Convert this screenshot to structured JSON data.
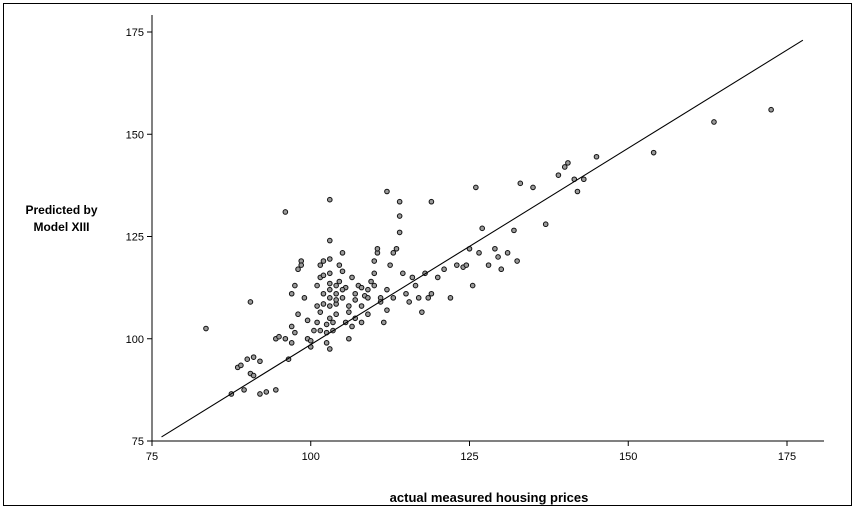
{
  "chart_data": {
    "type": "scatter",
    "title": "",
    "xlabel": "actual measured housing prices",
    "ylabel": [
      "Predicted by",
      "Model XIII"
    ],
    "xlim": [
      75,
      180
    ],
    "ylim": [
      75,
      180
    ],
    "xticks": [
      75,
      100,
      125,
      150,
      175
    ],
    "yticks": [
      75,
      100,
      125,
      150,
      175
    ],
    "grid": false,
    "fit_line": {
      "x": [
        76.5,
        177.5
      ],
      "y": [
        76.0,
        173.0
      ]
    },
    "points": [
      [
        83.5,
        102.5
      ],
      [
        87.5,
        86.5
      ],
      [
        88.5,
        93
      ],
      [
        89,
        93.5
      ],
      [
        89.5,
        87.5
      ],
      [
        90,
        95
      ],
      [
        91,
        95.5
      ],
      [
        90.5,
        91.5
      ],
      [
        91,
        91
      ],
      [
        92,
        94.5
      ],
      [
        92,
        86.5
      ],
      [
        93,
        87
      ],
      [
        94.5,
        87.5
      ],
      [
        90.5,
        109
      ],
      [
        94.5,
        100
      ],
      [
        95,
        100.5
      ],
      [
        96,
        100
      ],
      [
        96,
        131
      ],
      [
        96.5,
        95
      ],
      [
        97,
        99
      ],
      [
        97,
        103
      ],
      [
        97.5,
        101.5
      ],
      [
        98,
        106
      ],
      [
        97.5,
        113
      ],
      [
        97,
        111
      ],
      [
        98,
        117
      ],
      [
        98.5,
        119
      ],
      [
        98.5,
        118
      ],
      [
        99,
        110
      ],
      [
        99.5,
        104.5
      ],
      [
        99.5,
        100
      ],
      [
        100,
        98
      ],
      [
        100,
        99.5
      ],
      [
        100.5,
        102
      ],
      [
        101,
        104
      ],
      [
        101,
        108
      ],
      [
        101.5,
        102
      ],
      [
        101.5,
        106.5
      ],
      [
        101,
        113
      ],
      [
        101.5,
        115
      ],
      [
        101.5,
        118
      ],
      [
        102,
        119
      ],
      [
        102,
        115.5
      ],
      [
        102,
        111
      ],
      [
        102.5,
        103.5
      ],
      [
        102.5,
        101.5
      ],
      [
        102.5,
        99
      ],
      [
        103,
        97.5
      ],
      [
        103,
        105
      ],
      [
        103,
        108
      ],
      [
        103,
        110
      ],
      [
        103,
        112
      ],
      [
        103,
        113.5
      ],
      [
        103,
        116
      ],
      [
        103,
        119.5
      ],
      [
        103,
        124
      ],
      [
        103,
        134
      ],
      [
        103.5,
        102
      ],
      [
        103.5,
        104
      ],
      [
        104,
        106
      ],
      [
        104,
        108.5
      ],
      [
        104,
        111
      ],
      [
        104,
        113
      ],
      [
        104.5,
        118
      ],
      [
        105,
        121
      ],
      [
        105,
        116.5
      ],
      [
        105,
        110
      ],
      [
        105.5,
        112.5
      ],
      [
        105.5,
        104
      ],
      [
        106,
        106.5
      ],
      [
        106,
        100
      ],
      [
        106.5,
        103
      ],
      [
        107,
        109.5
      ],
      [
        107,
        111
      ],
      [
        107.5,
        113
      ],
      [
        108,
        108
      ],
      [
        108,
        104
      ],
      [
        108.5,
        110.5
      ],
      [
        109,
        112
      ],
      [
        109,
        106
      ],
      [
        109.5,
        114
      ],
      [
        110,
        116
      ],
      [
        110,
        119
      ],
      [
        110.5,
        121
      ],
      [
        110.5,
        122
      ],
      [
        111,
        110
      ],
      [
        111,
        109
      ],
      [
        111.5,
        104
      ],
      [
        112,
        107
      ],
      [
        112,
        112
      ],
      [
        112.5,
        118
      ],
      [
        113,
        110
      ],
      [
        113,
        121
      ],
      [
        113.5,
        122
      ],
      [
        112,
        136
      ],
      [
        114,
        133.5
      ],
      [
        114,
        130
      ],
      [
        114,
        126
      ],
      [
        114.5,
        116
      ],
      [
        115,
        111
      ],
      [
        115.5,
        109
      ],
      [
        116,
        115
      ],
      [
        116.5,
        113
      ],
      [
        117,
        110
      ],
      [
        117.5,
        106.5
      ],
      [
        118,
        116
      ],
      [
        118.5,
        110
      ],
      [
        119,
        111
      ],
      [
        119,
        133.5
      ],
      [
        120,
        115
      ],
      [
        121,
        117
      ],
      [
        122,
        110
      ],
      [
        123,
        118
      ],
      [
        124,
        117.5
      ],
      [
        124.5,
        118
      ],
      [
        125,
        122
      ],
      [
        125.5,
        113
      ],
      [
        126,
        137
      ],
      [
        126.5,
        121
      ],
      [
        127,
        127
      ],
      [
        128,
        118
      ],
      [
        129,
        122
      ],
      [
        129.5,
        120
      ],
      [
        130,
        117
      ],
      [
        131,
        121
      ],
      [
        132,
        126.5
      ],
      [
        132.5,
        119
      ],
      [
        133,
        138
      ],
      [
        135,
        137
      ],
      [
        137,
        128
      ],
      [
        139,
        140
      ],
      [
        140,
        142
      ],
      [
        140.5,
        143
      ],
      [
        141.5,
        139
      ],
      [
        142,
        136
      ],
      [
        143,
        139
      ],
      [
        145,
        144.5
      ],
      [
        154,
        145.5
      ],
      [
        163.5,
        153
      ],
      [
        172.5,
        156
      ],
      [
        104,
        109.5
      ],
      [
        105,
        112
      ],
      [
        106,
        108
      ],
      [
        107,
        105
      ],
      [
        108,
        112.5
      ],
      [
        109,
        110
      ],
      [
        110,
        113
      ],
      [
        106.5,
        115
      ],
      [
        104.5,
        114
      ],
      [
        102,
        108.5
      ]
    ]
  }
}
